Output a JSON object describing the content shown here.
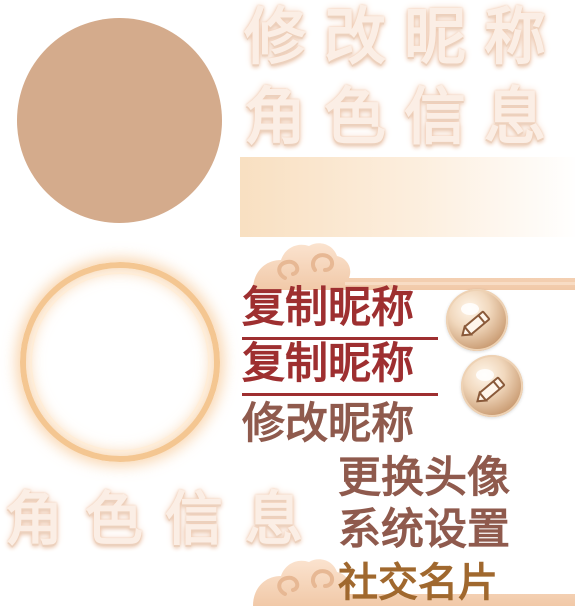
{
  "titles": {
    "modify_nickname": "修改昵称",
    "character_info_top": "角色信息",
    "character_info_bottom": "角色信息"
  },
  "menu": {
    "copy_nickname_1": "复制昵称",
    "copy_nickname_2": "复制昵称",
    "modify_nickname": "修改昵称",
    "change_avatar": "更换头像",
    "system_settings": "系统设置",
    "social_card": "社交名片"
  },
  "icons": {
    "edit_1": "pencil-edit-icon",
    "edit_2": "pencil-edit-icon",
    "cloud_1": "cloud-ornament-icon",
    "cloud_2": "cloud-ornament-icon"
  },
  "colors": {
    "avatar": "#d4ab8c",
    "dark_red": "#9e2f30",
    "brown": "#8f5a4d",
    "gold_brown": "#a0682e",
    "ring": "#f4c691"
  }
}
